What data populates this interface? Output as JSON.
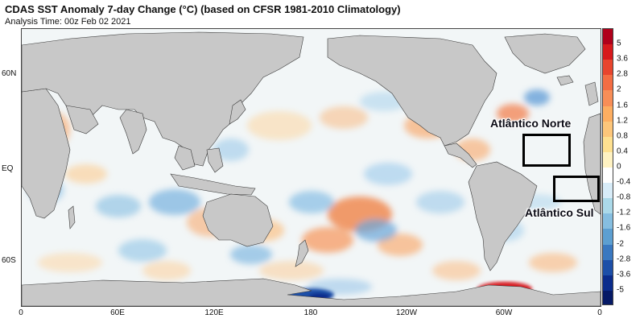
{
  "title": "CDAS SST Anomaly 7-day Change (°C) (based on CFSR 1981-2010 Climatology)",
  "subtitle": "Analysis Time: 00z Feb 02 2021",
  "lat_labels": [
    "60N",
    "EQ",
    "60S"
  ],
  "lon_labels": [
    "0",
    "60E",
    "120E",
    "180",
    "120W",
    "60W",
    "0"
  ],
  "colorbar": {
    "labels": [
      "5",
      "3.6",
      "2.8",
      "2",
      "1.6",
      "1.2",
      "0.8",
      "0.4",
      "0",
      "-0.4",
      "-0.8",
      "-1.2",
      "-1.6",
      "-2",
      "-2.8",
      "-3.6",
      "-5"
    ],
    "colors": [
      "#b0001a",
      "#d7191c",
      "#e8452e",
      "#f46d43",
      "#f88e57",
      "#fdae61",
      "#fdc67a",
      "#fee090",
      "#fff2c2",
      "#ffffff",
      "#d8ecf8",
      "#abd9e9",
      "#86bee0",
      "#5d9fd1",
      "#3a78c0",
      "#1d4fa8",
      "#0b2c8c",
      "#061a66"
    ]
  },
  "regions": [
    {
      "label": "Atlântico Norte"
    },
    {
      "label": "Atlântico Sul"
    }
  ],
  "colors": {
    "land": "#c8c8c8",
    "border": "#3a3a3a",
    "ocean_neutral": "#f3f7f8",
    "warm": "#f5b27a",
    "cool": "#8ec3e6"
  }
}
